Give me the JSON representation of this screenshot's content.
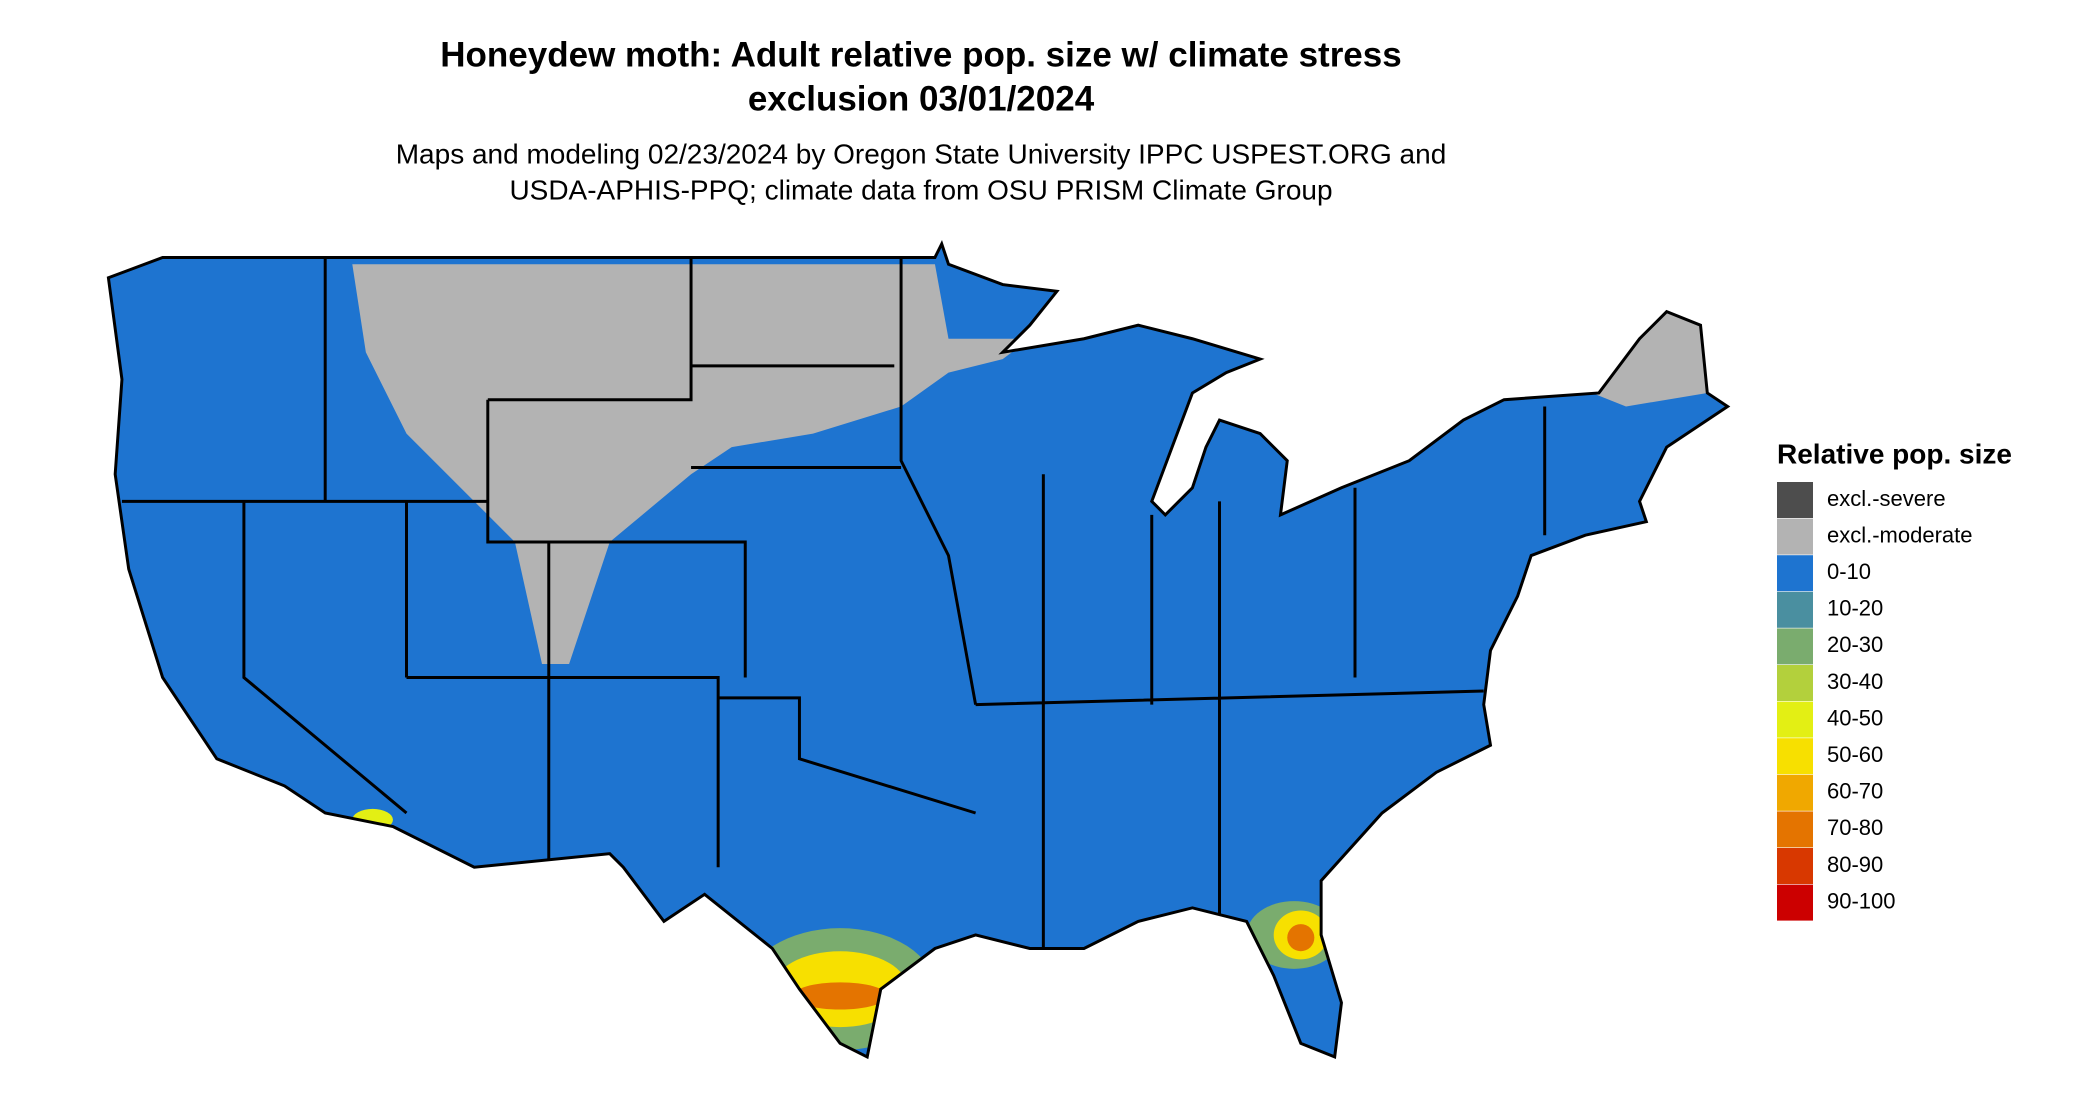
{
  "header": {
    "title_lines": [
      "Honeydew moth: Adult relative pop. size w/ climate stress",
      "exclusion 03/01/2024"
    ],
    "subtitle_lines": [
      "Maps and modeling 02/23/2024 by Oregon State University IPPC USPEST.ORG and",
      "USDA-APHIS-PPQ; climate data from OSU PRISM Climate Group"
    ]
  },
  "legend": {
    "title": "Relative pop. size",
    "items": [
      {
        "label": "excl.-severe",
        "color": "#4d4d4d"
      },
      {
        "label": "excl.-moderate",
        "color": "#b3b3b3"
      },
      {
        "label": "0-10",
        "color": "#1e74d0"
      },
      {
        "label": "10-20",
        "color": "#4a8fa0"
      },
      {
        "label": "20-30",
        "color": "#7aac6e"
      },
      {
        "label": "30-40",
        "color": "#b3d03c"
      },
      {
        "label": "40-50",
        "color": "#e3ef14"
      },
      {
        "label": "50-60",
        "color": "#f7e000"
      },
      {
        "label": "60-70",
        "color": "#f0a800"
      },
      {
        "label": "70-80",
        "color": "#e47400"
      },
      {
        "label": "80-90",
        "color": "#d83800"
      },
      {
        "label": "90-100",
        "color": "#cc0000"
      }
    ]
  }
}
